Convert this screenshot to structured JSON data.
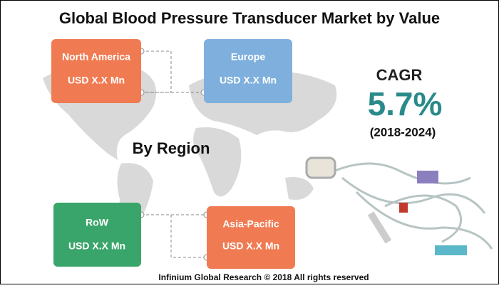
{
  "header": {
    "title": "Global Blood Pressure Transducer Market by Value"
  },
  "map_label": "By Region",
  "regions": [
    {
      "name": "North America",
      "value": "USD X.X Mn"
    },
    {
      "name": "Europe",
      "value": "USD X.X Mn"
    },
    {
      "name": "RoW",
      "value": "USD X.X Mn"
    },
    {
      "name": "Asia-Pacific",
      "value": "USD X.X Mn"
    }
  ],
  "cagr": {
    "label": "CAGR",
    "value": "5.7%",
    "period": "(2018-2024)"
  },
  "footer": "Infinium Global Research © 2018 All rights reserved"
}
